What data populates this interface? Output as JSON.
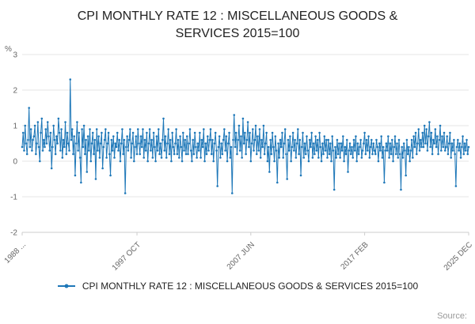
{
  "title": "CPI MONTHLY RATE 12 : MISCELLANEOUS GOODS & SERVICES 2015=100",
  "source_label": "Source:",
  "legend": {
    "label": "CPI MONTHLY RATE 12 : MISCELLANEOUS GOODS & SERVICES 2015=100"
  },
  "colors": {
    "accent": "#1d77b8",
    "grid": "#e6e6e6",
    "axis": "#cccccc",
    "tick_text": "#666666",
    "muted": "#999999"
  },
  "chart_data": {
    "type": "line",
    "title": "CPI MONTHLY RATE 12 : MISCELLANEOUS GOODS & SERVICES 2015=100",
    "xlabel": "",
    "ylabel": "%",
    "ylim": [
      -2,
      3
    ],
    "y_ticks": [
      3,
      2,
      1,
      0,
      -1,
      -2
    ],
    "grid": true,
    "legend_position": "bottom",
    "x_start": "1988",
    "x_end": "2025 DEC",
    "x_tick_labels": [
      "1988 ...",
      "1997 OCT",
      "2007 JUN",
      "2017 FEB",
      "2025 DEC"
    ],
    "x_tick_indices": [
      0,
      117,
      233,
      349,
      455
    ],
    "series": [
      {
        "name": "CPI MONTHLY RATE 12 : MISCELLANEOUS GOODS & SERVICES 2015=100",
        "color": "#1d77b8",
        "values": [
          0.4,
          0.8,
          0.3,
          1.0,
          0.5,
          0.2,
          0.6,
          1.5,
          0.4,
          0.9,
          0.3,
          0.6,
          0.7,
          1.0,
          0.2,
          0.5,
          1.1,
          0.4,
          0.0,
          0.8,
          1.2,
          0.3,
          0.6,
          0.4,
          0.9,
          0.5,
          1.1,
          0.7,
          0.3,
          0.8,
          -0.2,
          0.4,
          1.0,
          0.6,
          0.2,
          0.7,
          0.5,
          1.2,
          0.8,
          0.3,
          0.9,
          0.1,
          0.6,
          0.4,
          1.1,
          0.2,
          0.8,
          0.5,
          0.3,
          2.3,
          0.6,
          0.9,
          0.2,
          0.7,
          -0.4,
          0.5,
          1.1,
          0.3,
          0.8,
          0.1,
          -0.6,
          0.9,
          0.4,
          1.0,
          0.2,
          0.6,
          -0.3,
          0.7,
          0.3,
          0.9,
          0.0,
          0.5,
          0.8,
          0.2,
          0.6,
          -0.5,
          0.9,
          0.3,
          0.7,
          0.1,
          0.5,
          0.8,
          -0.2,
          0.4,
          0.6,
          0.9,
          0.1,
          0.5,
          0.8,
          0.2,
          -0.4,
          0.6,
          0.3,
          0.7,
          0.1,
          0.5,
          0.4,
          0.8,
          0.3,
          0.6,
          0.0,
          0.5,
          0.9,
          0.2,
          0.6,
          -0.9,
          0.4,
          0.7,
          0.3,
          0.6,
          0.9,
          0.1,
          0.5,
          0.8,
          0.0,
          0.4,
          0.7,
          0.2,
          0.9,
          0.5,
          0.2,
          0.7,
          0.4,
          0.9,
          0.1,
          0.6,
          0.3,
          0.8,
          0.0,
          0.5,
          0.9,
          0.3,
          0.6,
          0.1,
          0.8,
          0.4,
          0.0,
          0.7,
          0.3,
          0.9,
          0.2,
          0.5,
          0.1,
          0.6,
          1.2,
          0.3,
          0.7,
          0.1,
          0.5,
          0.9,
          0.2,
          0.6,
          0.0,
          0.8,
          0.4,
          0.2,
          0.5,
          0.9,
          0.2,
          0.6,
          0.1,
          0.7,
          0.4,
          0.0,
          0.8,
          0.3,
          0.6,
          0.2,
          0.7,
          0.2,
          0.5,
          0.9,
          0.3,
          0.0,
          0.6,
          0.2,
          0.8,
          0.4,
          0.1,
          0.5,
          0.3,
          0.8,
          0.1,
          0.6,
          0.4,
          0.9,
          0.0,
          0.5,
          0.2,
          0.7,
          0.3,
          0.6,
          0.9,
          0.2,
          0.6,
          0.0,
          0.5,
          0.8,
          0.3,
          -0.7,
          0.4,
          0.7,
          0.1,
          0.5,
          0.2,
          0.6,
          0.9,
          0.3,
          0.7,
          0.0,
          0.5,
          0.8,
          0.1,
          0.4,
          -0.9,
          0.6,
          1.3,
          0.4,
          0.8,
          0.2,
          0.6,
          1.0,
          0.3,
          0.7,
          0.1,
          1.2,
          0.5,
          0.8,
          0.2,
          0.6,
          1.1,
          0.4,
          0.8,
          0.0,
          0.5,
          0.9,
          0.3,
          0.6,
          1.0,
          0.2,
          0.7,
          0.3,
          0.9,
          0.1,
          0.6,
          0.4,
          1.0,
          0.2,
          0.5,
          0.8,
          0.0,
          0.4,
          -0.3,
          0.6,
          0.2,
          0.8,
          0.4,
          0.0,
          0.7,
          0.3,
          -0.6,
          0.5,
          0.1,
          0.6,
          0.4,
          0.8,
          0.1,
          0.5,
          0.9,
          0.2,
          -0.5,
          0.6,
          0.3,
          0.7,
          0.0,
          0.4,
          0.8,
          0.3,
          0.6,
          0.1,
          0.5,
          0.9,
          0.2,
          0.6,
          -0.4,
          0.4,
          0.8,
          0.1,
          0.5,
          0.2,
          0.7,
          0.3,
          0.0,
          0.6,
          0.4,
          0.8,
          0.1,
          0.5,
          0.2,
          0.7,
          0.3,
          0.6,
          0.1,
          0.8,
          0.4,
          0.0,
          0.5,
          0.2,
          0.7,
          0.3,
          0.6,
          0.1,
          0.6,
          0.2,
          0.5,
          0.0,
          0.7,
          0.3,
          -0.8,
          0.4,
          0.1,
          0.6,
          0.2,
          0.5,
          0.1,
          0.5,
          0.3,
          0.7,
          0.0,
          0.4,
          0.2,
          0.6,
          -0.3,
          0.3,
          0.5,
          0.2,
          0.4,
          0.1,
          0.6,
          0.3,
          0.7,
          0.0,
          0.5,
          0.2,
          0.4,
          0.6,
          0.1,
          0.3,
          0.5,
          0.8,
          0.2,
          0.6,
          0.3,
          0.7,
          0.1,
          0.4,
          0.6,
          0.2,
          0.5,
          0.3,
          0.2,
          0.6,
          0.4,
          0.0,
          0.5,
          0.3,
          0.7,
          0.1,
          0.4,
          -0.6,
          0.3,
          0.5,
          0.3,
          0.7,
          0.1,
          0.5,
          0.2,
          0.6,
          0.0,
          0.4,
          0.7,
          0.2,
          0.5,
          0.1,
          0.6,
          0.2,
          -0.8,
          0.4,
          0.1,
          0.5,
          0.3,
          -0.4,
          0.6,
          0.2,
          0.4,
          0.0,
          0.3,
          0.6,
          0.1,
          0.7,
          0.4,
          0.8,
          0.2,
          0.5,
          0.9,
          0.3,
          0.6,
          0.4,
          0.8,
          0.4,
          1.0,
          0.5,
          0.9,
          0.3,
          0.7,
          1.1,
          0.4,
          0.8,
          0.2,
          0.6,
          0.5,
          0.9,
          0.4,
          0.7,
          0.2,
          0.6,
          1.0,
          0.3,
          0.7,
          0.4,
          0.8,
          0.3,
          0.4,
          0.7,
          0.2,
          0.5,
          0.8,
          0.1,
          0.5,
          0.3,
          0.6,
          0.2,
          -0.7,
          0.4,
          0.6,
          0.3,
          0.5,
          0.1,
          0.4,
          0.7,
          0.2,
          0.5,
          0.3,
          0.6,
          0.2,
          0.4
        ]
      }
    ]
  }
}
